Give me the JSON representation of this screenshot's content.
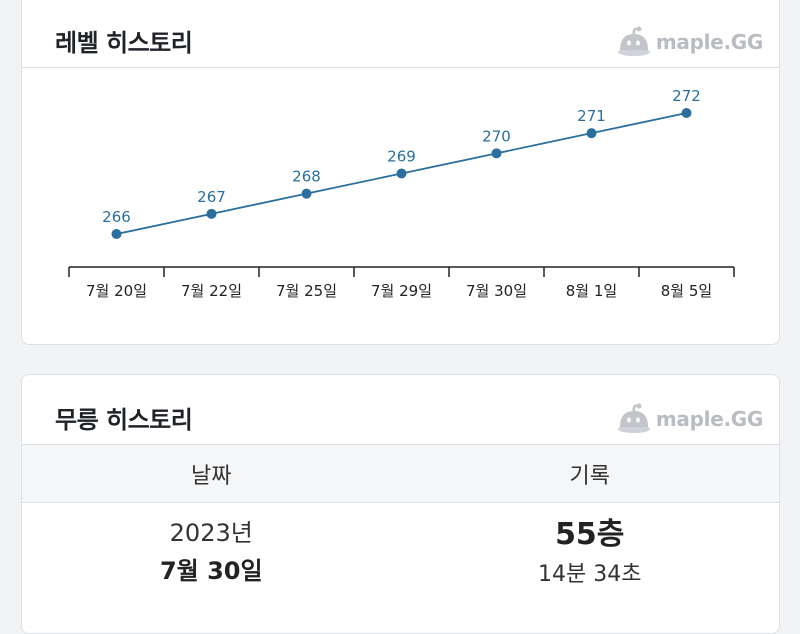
{
  "level_history": {
    "title": "레벨 히스토리",
    "brand": {
      "text": "maple.GG",
      "icon": "mascot-icon"
    }
  },
  "mureung_history": {
    "title": "무릉 히스토리",
    "brand": {
      "text": "maple.GG",
      "icon": "mascot-icon"
    },
    "columns": [
      "날짜",
      "기록"
    ],
    "rows": [
      {
        "date_year": "2023년",
        "date_day": "7월 30일",
        "floor": "55층",
        "time": "14분 34초"
      }
    ]
  },
  "chart_data": {
    "type": "line",
    "categories": [
      "7월 20일",
      "7월 22일",
      "7월 25일",
      "7월 29일",
      "7월 30일",
      "8월 1일",
      "8월 5일"
    ],
    "values": [
      266,
      267,
      268,
      269,
      270,
      271,
      272
    ],
    "ylim": [
      265.5,
      272.5
    ],
    "color": "#2a6f9e",
    "data_labels": true,
    "grid": false
  }
}
